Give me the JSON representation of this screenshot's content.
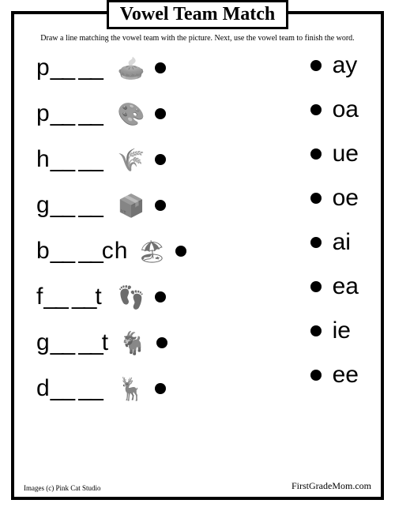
{
  "title": "Vowel Team Match",
  "instructions": "Draw a line matching the vowel team with the picture. Next, use the vowel team to finish the word.",
  "left_rows": [
    {
      "prefix": "p",
      "suffix": "",
      "icon": "🥧"
    },
    {
      "prefix": "p",
      "suffix": "",
      "icon": "🎨"
    },
    {
      "prefix": "h",
      "suffix": "",
      "icon": "🌾"
    },
    {
      "prefix": "g",
      "suffix": "",
      "icon": "📦"
    },
    {
      "prefix": "b",
      "suffix": "ch",
      "icon": "🏖"
    },
    {
      "prefix": "f",
      "suffix": "t",
      "icon": "👣"
    },
    {
      "prefix": "g",
      "suffix": "t",
      "icon": "🐐"
    },
    {
      "prefix": "d",
      "suffix": "",
      "icon": "🦌"
    }
  ],
  "right_rows": [
    {
      "team": "ay"
    },
    {
      "team": "oa"
    },
    {
      "team": "ue"
    },
    {
      "team": "oe"
    },
    {
      "team": "ai"
    },
    {
      "team": "ea"
    },
    {
      "team": "ie"
    },
    {
      "team": "ee"
    }
  ],
  "credit_left": "Images (c) Pink Cat Studio",
  "credit_right": "FirstGradeMom.com",
  "colors": {
    "border": "#000000",
    "background": "#ffffff",
    "text": "#000000",
    "icon": "#666666"
  },
  "typography": {
    "title_fontsize": 24,
    "instructions_fontsize": 10,
    "word_fontsize": 30,
    "credit_fontsize": 9
  }
}
